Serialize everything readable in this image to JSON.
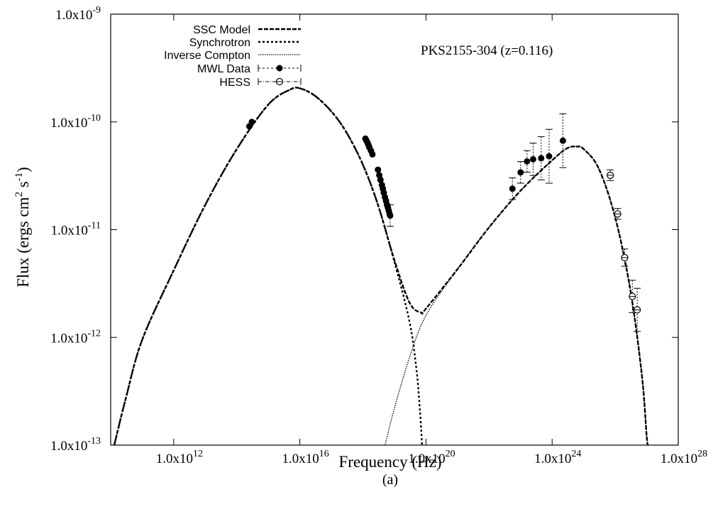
{
  "chart_data": {
    "type": "scatter",
    "title": "PKS2155-304 (z=0.116)",
    "caption": "(a)",
    "xlabel": "Frequency (Hz)",
    "ylabel": "Flux (ergs cm^2 s^-1)",
    "ylabel_parts": {
      "main": "Flux (ergs cm",
      "sup1": "2",
      "mid": " s",
      "sup2": "-1",
      "end": ")"
    },
    "x_scale": "log",
    "y_scale": "log",
    "xlim": [
      10000000000.0,
      1e+28
    ],
    "ylim": [
      1e-13,
      1e-09
    ],
    "x_ticks": [
      {
        "value": 1000000000000.0,
        "base": "1.0x10",
        "exp": "12"
      },
      {
        "value": 1e+16,
        "base": "1.0x10",
        "exp": "16"
      },
      {
        "value": 1e+20,
        "base": "1.0x10",
        "exp": "20"
      },
      {
        "value": 1e+24,
        "base": "1.0x10",
        "exp": "24"
      },
      {
        "value": 1e+28,
        "base": "1.0x10",
        "exp": "28"
      }
    ],
    "y_ticks": [
      {
        "value": 1e-13,
        "base": "1.0x10",
        "exp": "-13"
      },
      {
        "value": 1e-12,
        "base": "1.0x10",
        "exp": "-12"
      },
      {
        "value": 1e-11,
        "base": "1.0x10",
        "exp": "-11"
      },
      {
        "value": 1e-10,
        "base": "1.0x10",
        "exp": "-10"
      },
      {
        "value": 1e-09,
        "base": "1.0x10",
        "exp": "-9"
      }
    ],
    "legend_position": "top-left",
    "legend": [
      {
        "label": "SSC Model",
        "style": "ssc"
      },
      {
        "label": "Synchrotron",
        "style": "sync"
      },
      {
        "label": "Inverse Compton",
        "style": "ic"
      },
      {
        "label": "MWL Data",
        "style": "mwl"
      },
      {
        "label": "HESS",
        "style": "hess"
      }
    ],
    "series": [
      {
        "name": "SSC Model",
        "kind": "line",
        "points": [
          [
            13000000000.0,
            1e-13
          ],
          [
            30000000000.0,
            2.7e-13
          ],
          [
            100000000000.0,
            9.5e-13
          ],
          [
            1000000000000.0,
            4.2e-12
          ],
          [
            10000000000000.0,
            1.7e-11
          ],
          [
            100000000000000.0,
            5.6e-11
          ],
          [
            1000000000000000.0,
            1.45e-10
          ],
          [
            5000000000000000.0,
            2e-10
          ],
          [
            1e+16,
            2.05e-10
          ],
          [
            3e+16,
            1.75e-10
          ],
          [
            1e+17,
            1.25e-10
          ],
          [
            3e+17,
            8e-11
          ],
          [
            1e+18,
            4e-11
          ],
          [
            3e+18,
            1.7e-11
          ],
          [
            1e+19,
            5.2e-12
          ],
          [
            3e+19,
            2.1e-12
          ],
          [
            7e+19,
            1.7e-12
          ],
          [
            1e+20,
            1.85e-12
          ],
          [
            1e+21,
            4.3e-12
          ],
          [
            1e+22,
            1.05e-11
          ],
          [
            1e+23,
            2.3e-11
          ],
          [
            1e+24,
            4.4e-11
          ],
          [
            3e+24,
            5.7e-11
          ],
          [
            6e+24,
            5.9e-11
          ],
          [
            1e+25,
            5.6e-11
          ],
          [
            3e+25,
            3.7e-11
          ],
          [
            1e+26,
            1.3e-11
          ],
          [
            3e+26,
            2.8e-12
          ],
          [
            7e+26,
            4.5e-13
          ],
          [
            1e+27,
            1.2e-13
          ],
          [
            1.1e+27,
            1e-13
          ]
        ]
      },
      {
        "name": "Synchrotron",
        "kind": "line",
        "points": [
          [
            13000000000.0,
            1e-13
          ],
          [
            30000000000.0,
            2.7e-13
          ],
          [
            100000000000.0,
            9.5e-13
          ],
          [
            1000000000000.0,
            4.2e-12
          ],
          [
            10000000000000.0,
            1.7e-11
          ],
          [
            100000000000000.0,
            5.6e-11
          ],
          [
            1000000000000000.0,
            1.45e-10
          ],
          [
            5000000000000000.0,
            2e-10
          ],
          [
            1e+16,
            2.05e-10
          ],
          [
            3e+16,
            1.75e-10
          ],
          [
            1e+17,
            1.25e-10
          ],
          [
            3e+17,
            8e-11
          ],
          [
            1e+18,
            4e-11
          ],
          [
            3e+18,
            1.7e-11
          ],
          [
            1e+19,
            5e-12
          ],
          [
            3e+19,
            1.4e-12
          ],
          [
            5e+19,
            5e-13
          ],
          [
            6.5e+19,
            2e-13
          ],
          [
            7.5e+19,
            1e-13
          ]
        ]
      },
      {
        "name": "Inverse Compton",
        "kind": "line",
        "points": [
          [
            5e+18,
            1e-13
          ],
          [
            1e+19,
            2.2e-13
          ],
          [
            3e+19,
            6.5e-13
          ],
          [
            1e+20,
            1.6e-12
          ],
          [
            1e+21,
            4.3e-12
          ],
          [
            1e+22,
            1.05e-11
          ],
          [
            1e+23,
            2.3e-11
          ],
          [
            1e+24,
            4.4e-11
          ],
          [
            3e+24,
            5.7e-11
          ],
          [
            6e+24,
            5.9e-11
          ],
          [
            1e+25,
            5.6e-11
          ],
          [
            3e+25,
            3.7e-11
          ],
          [
            1e+26,
            1.3e-11
          ],
          [
            3e+26,
            2.8e-12
          ],
          [
            7e+26,
            4.5e-13
          ],
          [
            1e+27,
            1.2e-13
          ],
          [
            1.1e+27,
            1e-13
          ]
        ]
      },
      {
        "name": "MWL Data",
        "kind": "points",
        "points": [
          [
            250000000000000.0,
            9.1e-11,
            0
          ],
          [
            300000000000000.0,
            1e-10,
            0
          ],
          [
            1.2e+18,
            7e-11,
            0
          ],
          [
            1.3e+18,
            6.7e-11,
            0
          ],
          [
            1.4e+18,
            6.4e-11,
            0
          ],
          [
            1.5e+18,
            6.1e-11,
            0
          ],
          [
            1.6e+18,
            5.8e-11,
            0
          ],
          [
            1.8e+18,
            5.4e-11,
            0
          ],
          [
            2e+18,
            5e-11,
            0
          ],
          [
            3e+18,
            3.6e-11,
            0
          ],
          [
            3.3e+18,
            3.2e-11,
            0
          ],
          [
            3.6e+18,
            2.9e-11,
            0
          ],
          [
            4e+18,
            2.6e-11,
            0
          ],
          [
            4.3e+18,
            2.4e-11,
            0
          ],
          [
            4.6e+18,
            2.2e-11,
            0
          ],
          [
            5e+18,
            2e-11,
            0
          ],
          [
            5.4e+18,
            1.85e-11,
            0
          ],
          [
            5.8e+18,
            1.7e-11,
            0
          ],
          [
            6.2e+18,
            1.6e-11,
            0
          ],
          [
            6.6e+18,
            1.5e-11,
            0
          ],
          [
            7e+18,
            1.4e-11,
            0
          ],
          [
            7.3e+18,
            1.35e-11,
            0.1
          ],
          [
            5.5e+22,
            2.4e-11,
            0.1
          ],
          [
            1e+23,
            3.4e-11,
            0.1
          ],
          [
            1.6e+23,
            4.3e-11,
            0.1
          ],
          [
            2.5e+23,
            4.5e-11,
            0.15
          ],
          [
            4.5e+23,
            4.6e-11,
            0.2
          ],
          [
            8e+23,
            4.8e-11,
            0.25
          ],
          [
            2.2e+24,
            6.7e-11,
            0.25
          ]
        ]
      },
      {
        "name": "HESS",
        "kind": "points",
        "points": [
          [
            7e+25,
            3.2e-11,
            0.05
          ],
          [
            1.2e+26,
            1.4e-11,
            0.05
          ],
          [
            2e+26,
            5.5e-12,
            0.08
          ],
          [
            3.5e+26,
            2.4e-12,
            0.15
          ],
          [
            5e+26,
            1.8e-12,
            0.2
          ]
        ]
      }
    ]
  }
}
